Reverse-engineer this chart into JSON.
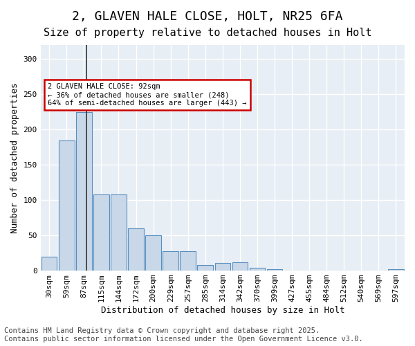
{
  "title1": "2, GLAVEN HALE CLOSE, HOLT, NR25 6FA",
  "title2": "Size of property relative to detached houses in Holt",
  "xlabel": "Distribution of detached houses by size in Holt",
  "ylabel": "Number of detached properties",
  "categories": [
    "30sqm",
    "59sqm",
    "87sqm",
    "115sqm",
    "144sqm",
    "172sqm",
    "200sqm",
    "229sqm",
    "257sqm",
    "285sqm",
    "314sqm",
    "342sqm",
    "370sqm",
    "399sqm",
    "427sqm",
    "455sqm",
    "484sqm",
    "512sqm",
    "540sqm",
    "569sqm",
    "597sqm"
  ],
  "values": [
    20,
    185,
    225,
    108,
    108,
    60,
    50,
    28,
    28,
    8,
    11,
    12,
    4,
    2,
    0,
    0,
    0,
    0,
    0,
    0,
    2
  ],
  "bar_color": "#c8d8e8",
  "bar_edge_color": "#5a8fc0",
  "vline_x": 2.16,
  "vline_color": "#333333",
  "annotation_text": "2 GLAVEN HALE CLOSE: 92sqm\n← 36% of detached houses are smaller (248)\n64% of semi-detached houses are larger (443) →",
  "annotation_box_color": "#ffffff",
  "annotation_box_edge": "#cc0000",
  "ylim": [
    0,
    320
  ],
  "yticks": [
    0,
    50,
    100,
    150,
    200,
    250,
    300
  ],
  "background_color": "#e8eef5",
  "grid_color": "#ffffff",
  "footer1": "Contains HM Land Registry data © Crown copyright and database right 2025.",
  "footer2": "Contains public sector information licensed under the Open Government Licence v3.0.",
  "title1_fontsize": 13,
  "title2_fontsize": 11,
  "tick_fontsize": 8,
  "label_fontsize": 9,
  "footer_fontsize": 7.5
}
